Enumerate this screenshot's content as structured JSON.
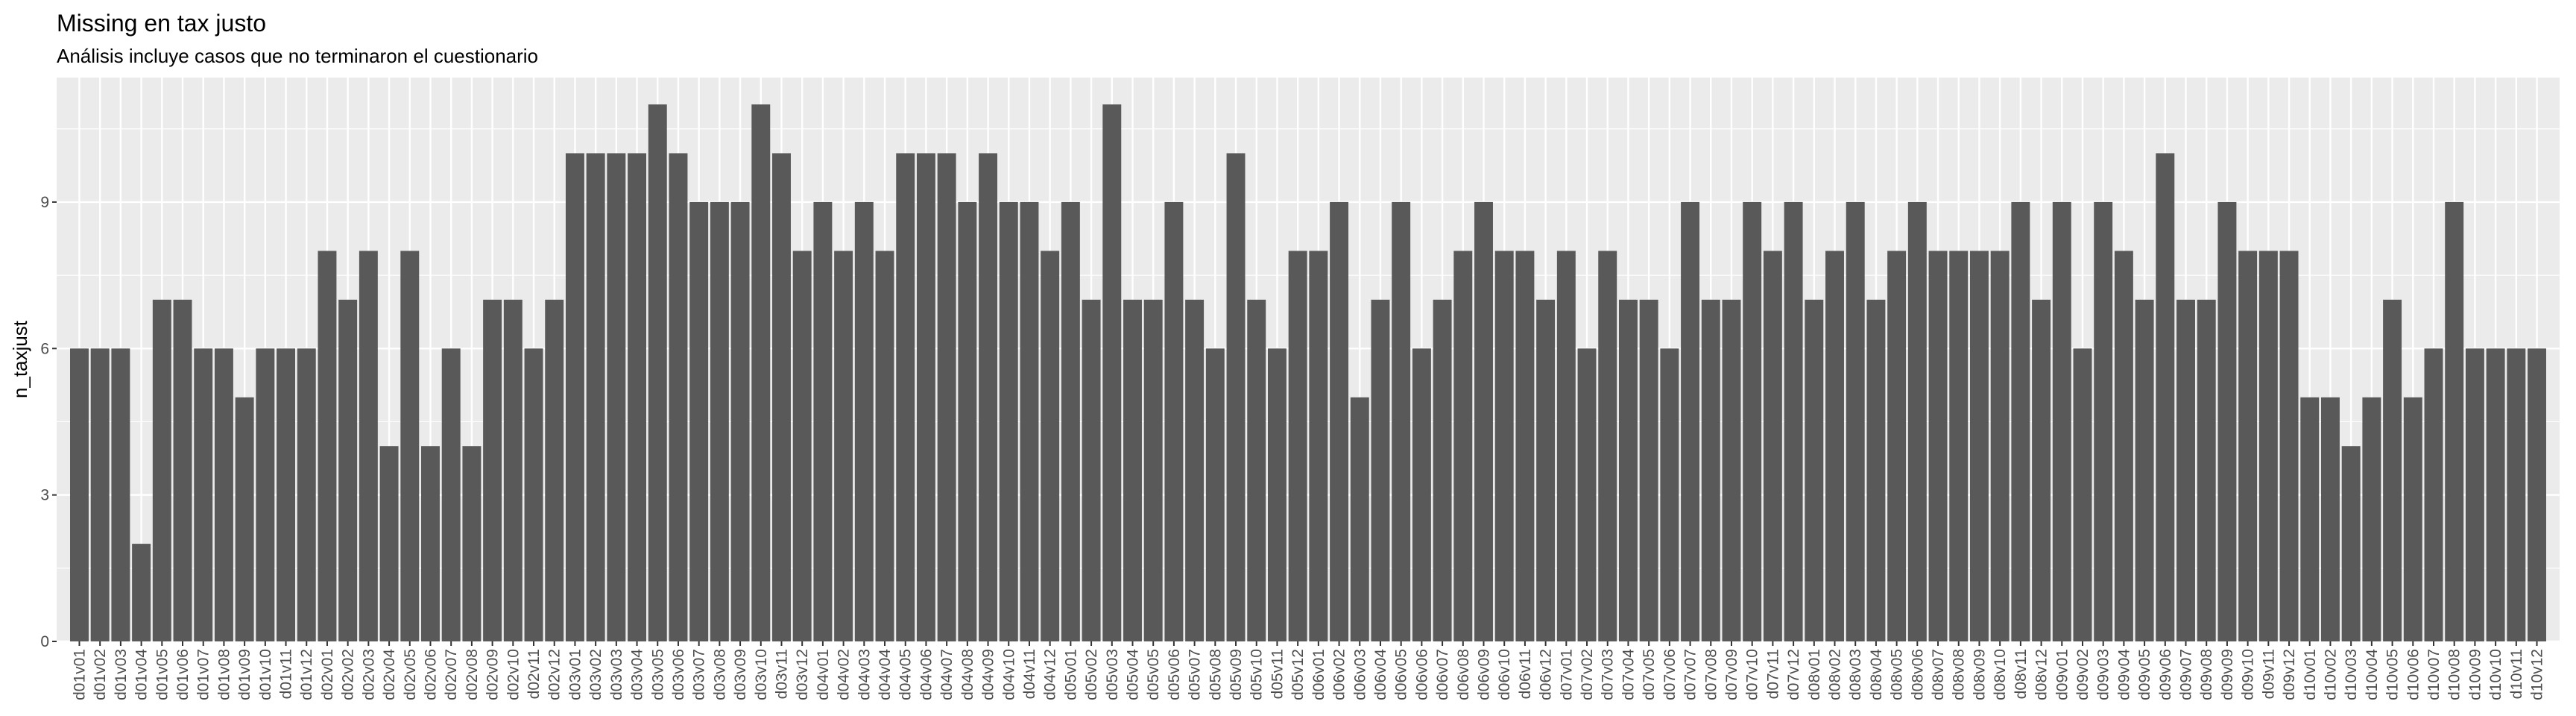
{
  "chart_data": {
    "type": "bar",
    "title": "Missing en tax justo",
    "subtitle": "Análisis incluye casos que no terminaron el cuestionario",
    "xlabel": "",
    "ylabel": "n_taxjust",
    "ylim": [
      0,
      11.55
    ],
    "yticks": [
      0,
      3,
      6,
      9
    ],
    "grid": true,
    "bar_color": "#595959",
    "panel_color": "#ebebeb",
    "categories": [
      "d01v01",
      "d01v02",
      "d01v03",
      "d01v04",
      "d01v05",
      "d01v06",
      "d01v07",
      "d01v08",
      "d01v09",
      "d01v10",
      "d01v11",
      "d01v12",
      "d02v01",
      "d02v02",
      "d02v03",
      "d02v04",
      "d02v05",
      "d02v06",
      "d02v07",
      "d02v08",
      "d02v09",
      "d02v10",
      "d02v11",
      "d02v12",
      "d03v01",
      "d03v02",
      "d03v03",
      "d03v04",
      "d03v05",
      "d03v06",
      "d03v07",
      "d03v08",
      "d03v09",
      "d03v10",
      "d03v11",
      "d03v12",
      "d04v01",
      "d04v02",
      "d04v03",
      "d04v04",
      "d04v05",
      "d04v06",
      "d04v07",
      "d04v08",
      "d04v09",
      "d04v10",
      "d04v11",
      "d04v12",
      "d05v01",
      "d05v02",
      "d05v03",
      "d05v04",
      "d05v05",
      "d05v06",
      "d05v07",
      "d05v08",
      "d05v09",
      "d05v10",
      "d05v11",
      "d05v12",
      "d06v01",
      "d06v02",
      "d06v03",
      "d06v04",
      "d06v05",
      "d06v06",
      "d06v07",
      "d06v08",
      "d06v09",
      "d06v10",
      "d06v11",
      "d06v12",
      "d07v01",
      "d07v02",
      "d07v03",
      "d07v04",
      "d07v05",
      "d07v06",
      "d07v07",
      "d07v08",
      "d07v09",
      "d07v10",
      "d07v11",
      "d07v12",
      "d08v01",
      "d08v02",
      "d08v03",
      "d08v04",
      "d08v05",
      "d08v06",
      "d08v07",
      "d08v08",
      "d08v09",
      "d08v10",
      "d08v11",
      "d08v12",
      "d09v01",
      "d09v02",
      "d09v03",
      "d09v04",
      "d09v05",
      "d09v06",
      "d09v07",
      "d09v08",
      "d09v09",
      "d09v10",
      "d09v11",
      "d09v12",
      "d10v01",
      "d10v02",
      "d10v03",
      "d10v04",
      "d10v05",
      "d10v06",
      "d10v07",
      "d10v08",
      "d10v09",
      "d10v10",
      "d10v11",
      "d10v12"
    ],
    "values": [
      6,
      6,
      6,
      2,
      7,
      7,
      6,
      6,
      5,
      6,
      6,
      6,
      8,
      7,
      8,
      4,
      8,
      4,
      6,
      4,
      7,
      7,
      6,
      7,
      10,
      10,
      10,
      10,
      11,
      10,
      9,
      9,
      9,
      11,
      10,
      8,
      9,
      8,
      9,
      8,
      10,
      10,
      10,
      9,
      10,
      9,
      9,
      8,
      9,
      7,
      11,
      7,
      7,
      9,
      7,
      6,
      10,
      7,
      6,
      8,
      8,
      9,
      5,
      7,
      9,
      6,
      7,
      8,
      9,
      8,
      8,
      7,
      8,
      6,
      8,
      7,
      7,
      6,
      9,
      7,
      7,
      9,
      8,
      9,
      7,
      8,
      9,
      7,
      8,
      9,
      8,
      8,
      8,
      8,
      9,
      7,
      9,
      6,
      9,
      8,
      7,
      10,
      7,
      7,
      9,
      8,
      8,
      8,
      5,
      5,
      4,
      5,
      7,
      5,
      6,
      9,
      6,
      6,
      6,
      6
    ]
  }
}
